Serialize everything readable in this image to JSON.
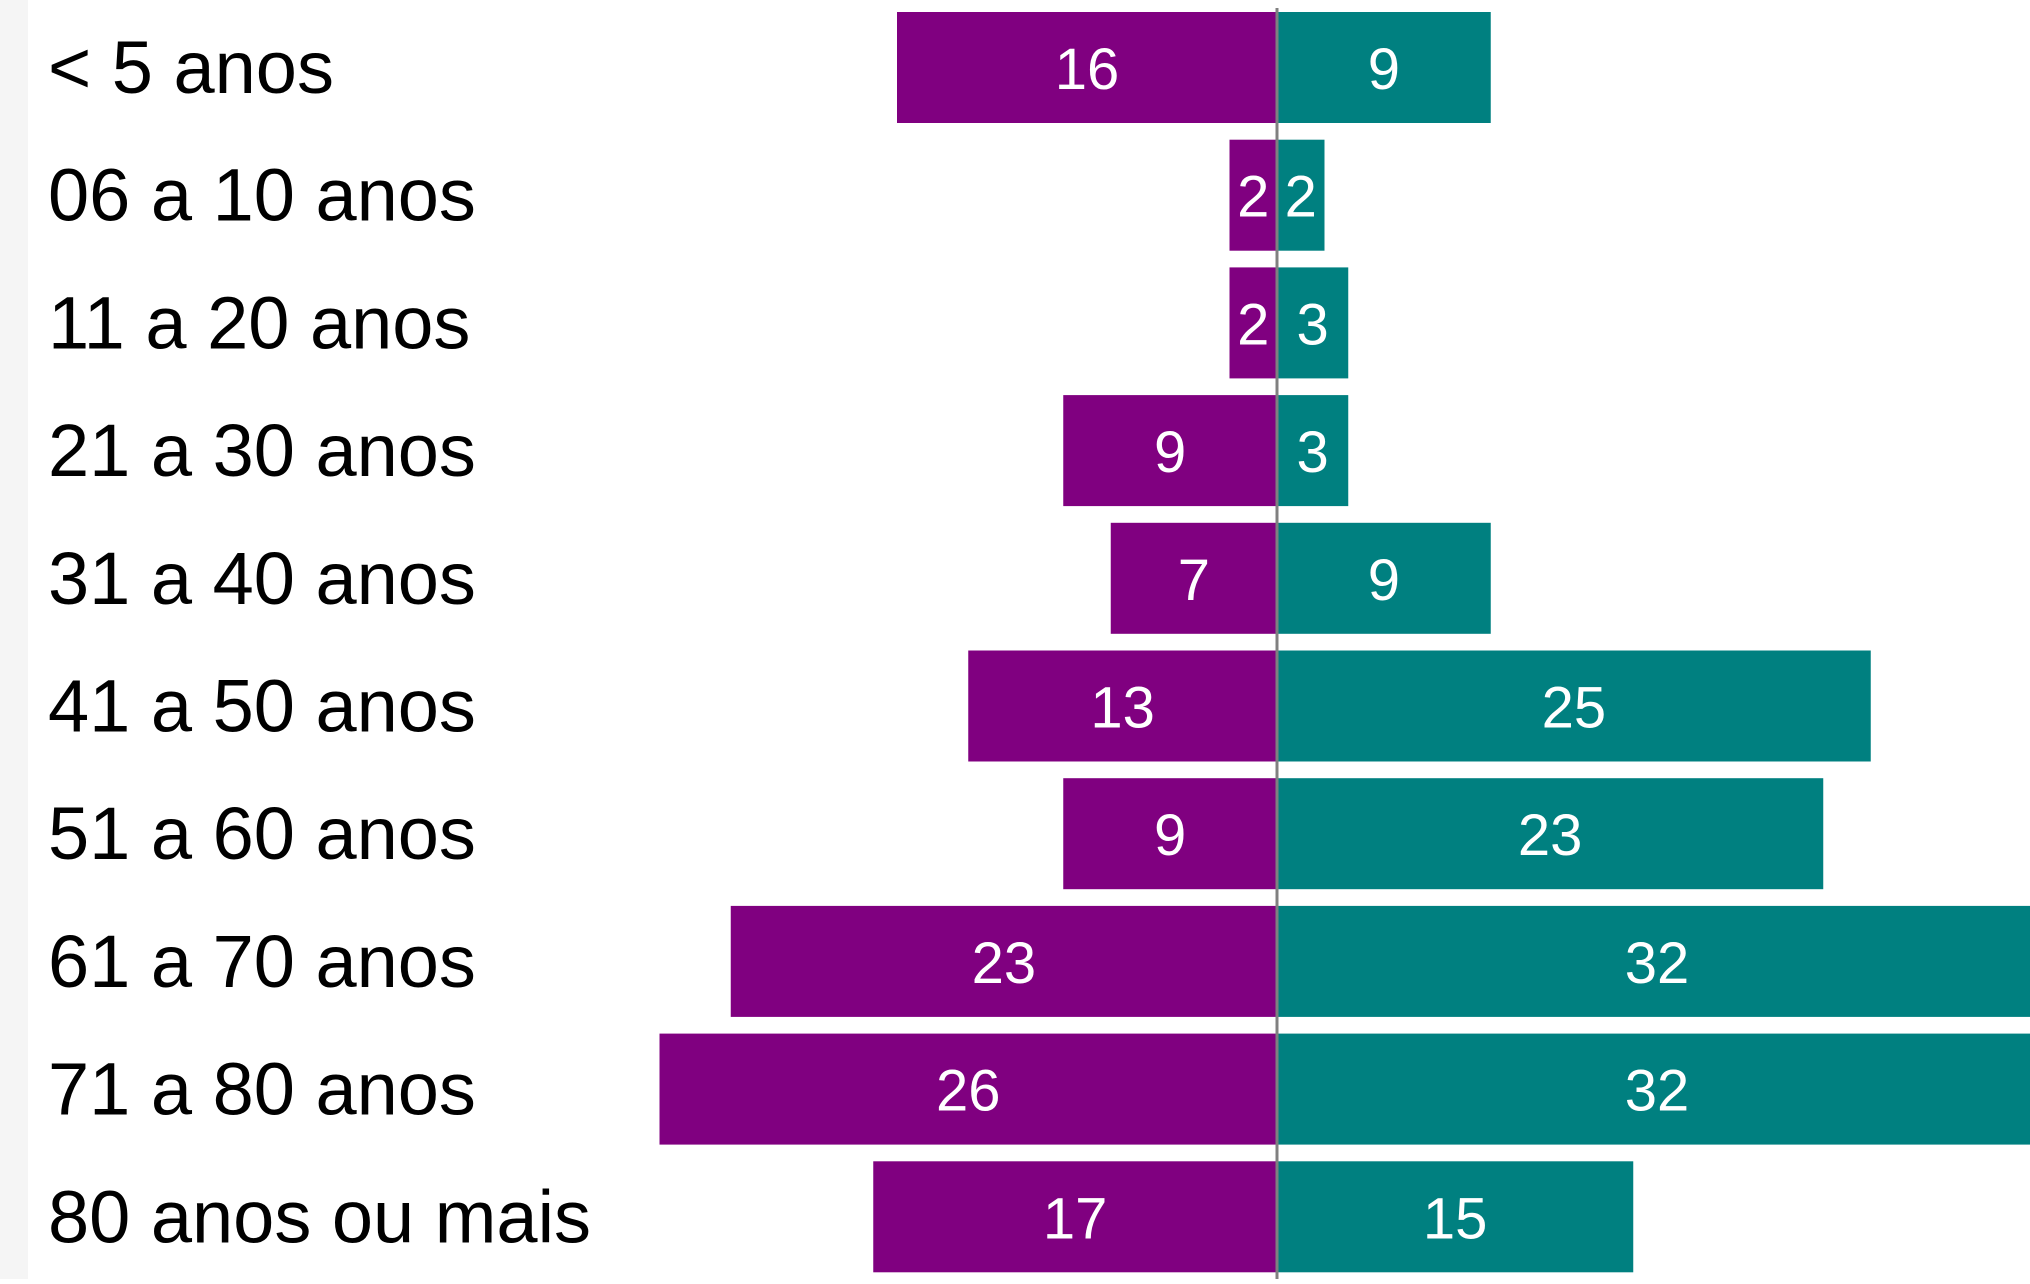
{
  "chart_data": {
    "type": "bar",
    "orientation": "horizontal",
    "layout": "diverging",
    "categories": [
      "< 5 anos",
      "06 a 10 anos",
      "11 a 20 anos",
      "21 a 30 anos",
      "31 a 40 anos",
      "41 a 50 anos",
      "51 a 60 anos",
      "61 a 70 anos",
      "71 a 80 anos",
      "80 anos ou mais"
    ],
    "series": [
      {
        "side": "left",
        "color": "#800080",
        "values": [
          16,
          2,
          2,
          9,
          7,
          13,
          9,
          23,
          26,
          17
        ]
      },
      {
        "side": "right",
        "color": "#008080",
        "values": [
          9,
          2,
          3,
          3,
          9,
          25,
          23,
          32,
          32,
          15
        ]
      }
    ],
    "title": "",
    "xlabel": "",
    "ylabel": "",
    "legend": "none",
    "grid": false,
    "data_labels": true,
    "label_color": "#ffffff",
    "axis_color": "#808080"
  }
}
